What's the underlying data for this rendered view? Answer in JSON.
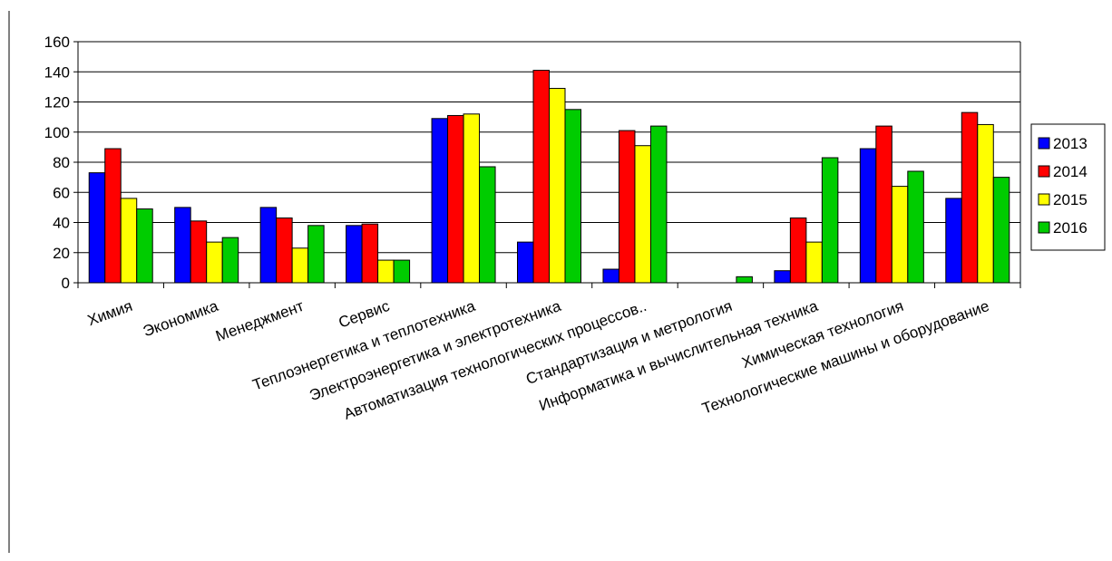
{
  "chart_data": {
    "type": "bar",
    "title": "",
    "xlabel": "",
    "ylabel": "",
    "ylim": [
      0,
      160
    ],
    "yticks": [
      0,
      20,
      40,
      60,
      80,
      100,
      120,
      140,
      160
    ],
    "grid": "horizontal",
    "legend_position": "right",
    "categories": [
      "Химия",
      "Экономика",
      "Менеджмент",
      "Сервис",
      "Теплоэнергетика и теплотехника",
      "Электроэнергетика и электротехника",
      "Автоматизация технологических процессов..",
      "Стандартизация и метрология",
      "Информатика и вычислительная техника",
      "Химическая технология",
      "Технологические машины и оборудование"
    ],
    "series": [
      {
        "name": "2013",
        "color": "#0000FF",
        "values": [
          73,
          50,
          50,
          38,
          109,
          27,
          9,
          0,
          8,
          89,
          56
        ]
      },
      {
        "name": "2014",
        "color": "#FF0000",
        "values": [
          89,
          41,
          43,
          39,
          111,
          141,
          101,
          0,
          43,
          104,
          113
        ]
      },
      {
        "name": "2015",
        "color": "#FFFF00",
        "values": [
          56,
          27,
          23,
          15,
          112,
          129,
          91,
          0,
          27,
          64,
          105
        ]
      },
      {
        "name": "2016",
        "color": "#00CC00",
        "values": [
          49,
          30,
          38,
          15,
          77,
          115,
          104,
          4,
          83,
          74,
          70
        ]
      }
    ]
  }
}
